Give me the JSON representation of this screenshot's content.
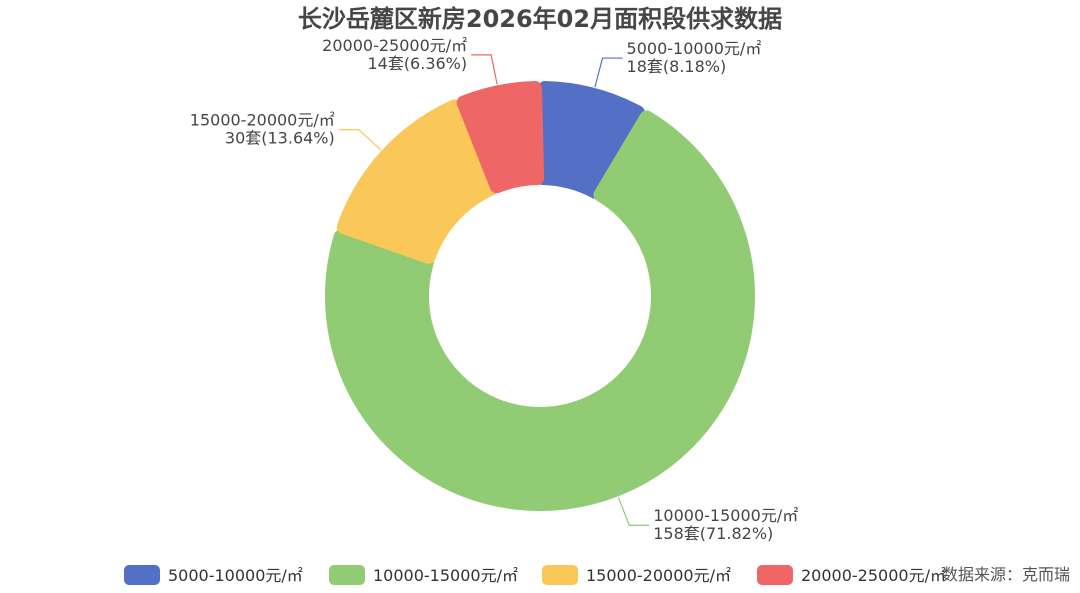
{
  "chart_data": {
    "type": "pie",
    "title": "长沙岳麓区新房2026年02月面积段供求数据",
    "unit_suffix": "套",
    "source": "数据来源：克而瑞",
    "slices": [
      {
        "label": "5000-10000元/㎡",
        "value": 18,
        "percent": "8.18%",
        "color": "#5470c6"
      },
      {
        "label": "10000-15000元/㎡",
        "value": 158,
        "percent": "71.82%",
        "color": "#91cc75"
      },
      {
        "label": "15000-20000元/㎡",
        "value": 30,
        "percent": "13.64%",
        "color": "#fac858"
      },
      {
        "label": "20000-25000元/㎡",
        "value": 14,
        "percent": "6.36%",
        "color": "#ee6666"
      }
    ]
  }
}
